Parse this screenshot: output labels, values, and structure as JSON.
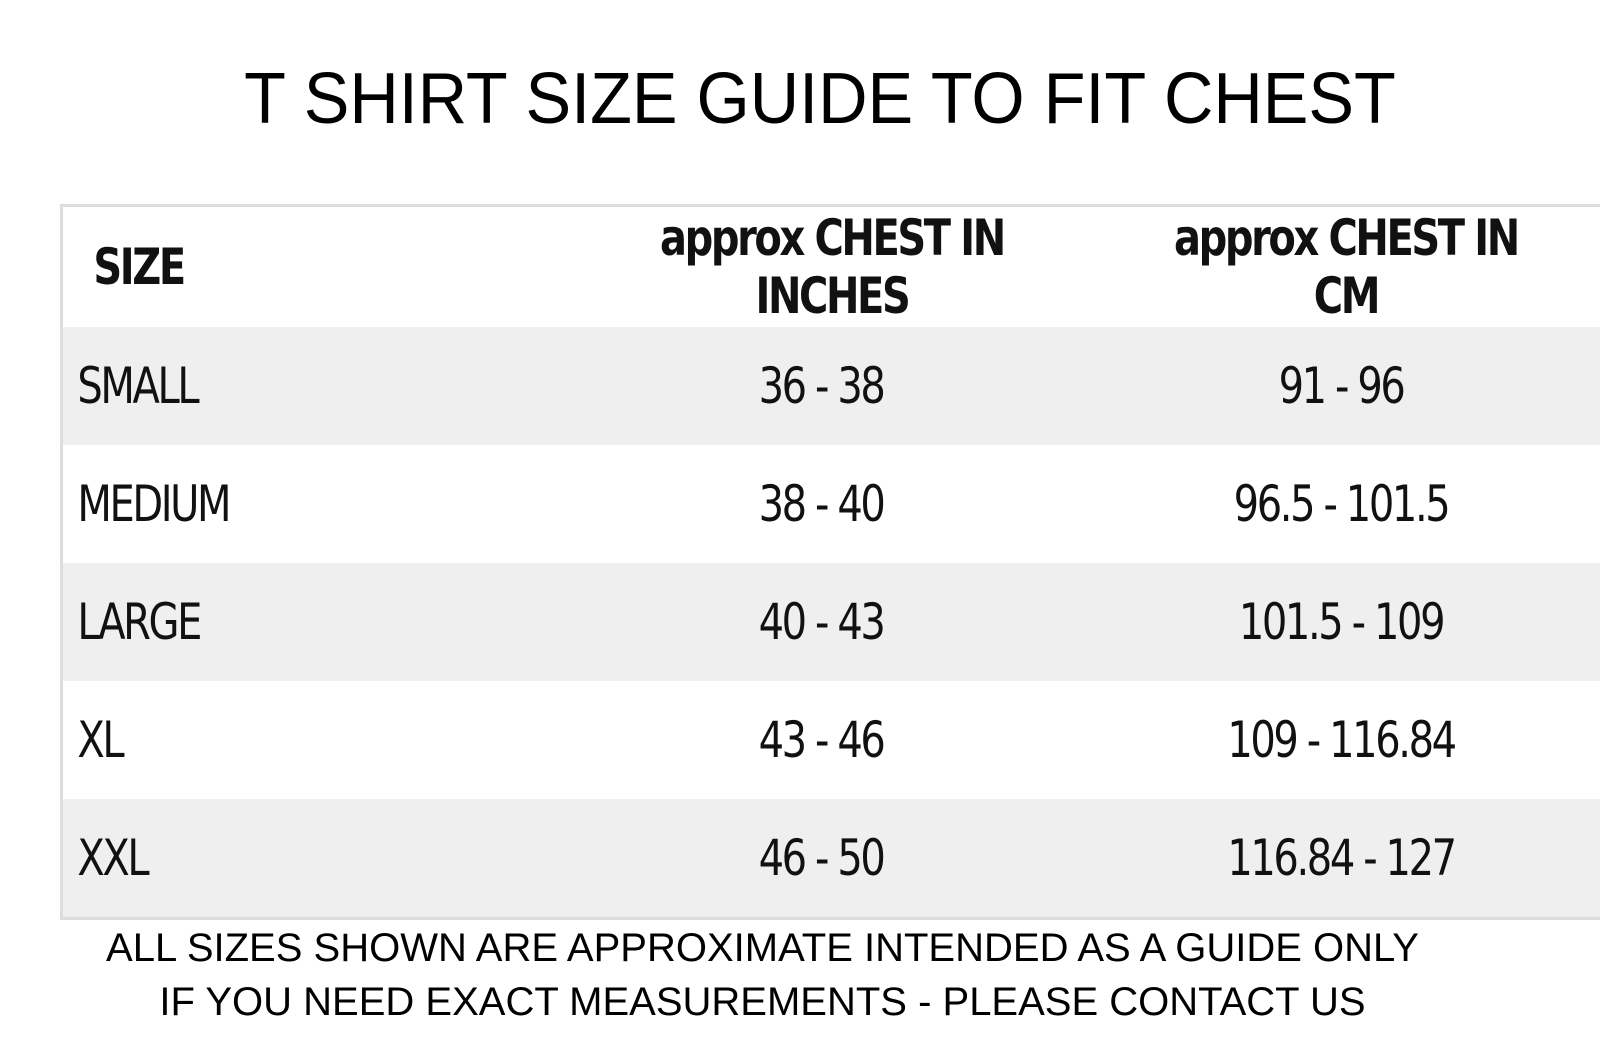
{
  "title": "T SHIRT SIZE GUIDE TO FIT CHEST",
  "table": {
    "header": [
      "SIZE",
      "approx CHEST IN INCHES",
      "approx CHEST IN CM"
    ],
    "rows": [
      [
        "SMALL",
        "36 - 38",
        "91 - 96"
      ],
      [
        "MEDIUM",
        "38 - 40",
        "96.5 - 101.5"
      ],
      [
        "LARGE",
        "40 - 43",
        "101.5 - 109"
      ],
      [
        "XL",
        "43 - 46",
        "109 - 116.84"
      ],
      [
        "XXL",
        "46 - 50",
        "116.84 - 127"
      ]
    ]
  },
  "footer": [
    "ALL SIZES SHOWN ARE APPROXIMATE INTENDED AS A GUIDE ONLY",
    "IF  YOU NEED EXACT MEASUREMENTS - PLEASE CONTACT US"
  ]
}
